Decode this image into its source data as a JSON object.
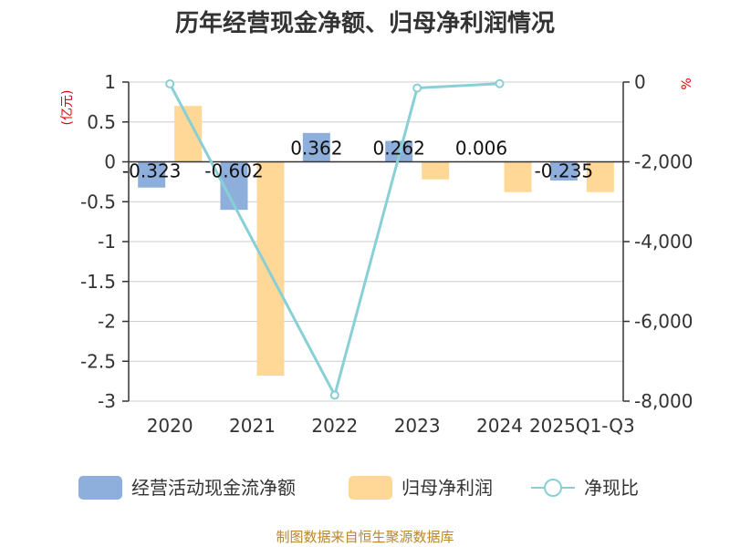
{
  "colors": {
    "cashflow": "#8eafdc",
    "profit": "#ffd898",
    "ratio": "#88d0d6",
    "axis": "#333333",
    "grid": "#cccccc",
    "unit": "#e00000",
    "source": "#b8862b"
  },
  "source": "制图数据来自恒生聚源数据库",
  "chart_data": {
    "type": "bar",
    "title": "历年经营现金净额、归母净利润情况",
    "categories": [
      "2020",
      "2021",
      "2022",
      "2023",
      "2024",
      "2025Q1-Q3"
    ],
    "y_left": {
      "unit": "(亿元)",
      "range": [
        -3,
        1
      ],
      "ticks": [
        1,
        0.5,
        0,
        -0.5,
        -1,
        -1.5,
        -2,
        -2.5,
        -3
      ],
      "tick_labels": [
        "1",
        "0.5",
        "0",
        "-0.5",
        "-1",
        "-1.5",
        "-2",
        "-2.5",
        "-3"
      ]
    },
    "y_right": {
      "unit": "%",
      "range": [
        -8000,
        0
      ],
      "ticks": [
        0,
        -2000,
        -4000,
        -6000,
        -8000
      ],
      "tick_labels": [
        "0",
        "-2,000",
        "-4,000",
        "-6,000",
        "-8,000"
      ]
    },
    "series": [
      {
        "name": "经营活动现金流净额",
        "type": "bar",
        "axis": "left",
        "values": [
          -0.323,
          -0.602,
          0.362,
          0.262,
          0.006,
          -0.235
        ],
        "labels": [
          "-0.323",
          "-0.602",
          "0.362",
          "0.262",
          "0.006",
          "-0.235"
        ]
      },
      {
        "name": "归母净利润",
        "type": "bar",
        "axis": "left",
        "values": [
          0.7,
          -2.68,
          null,
          -0.22,
          -0.38,
          -0.38
        ]
      },
      {
        "name": "净现比",
        "type": "line",
        "axis": "right",
        "values": [
          -46,
          null,
          -7850,
          -150,
          -40,
          null
        ]
      }
    ]
  }
}
